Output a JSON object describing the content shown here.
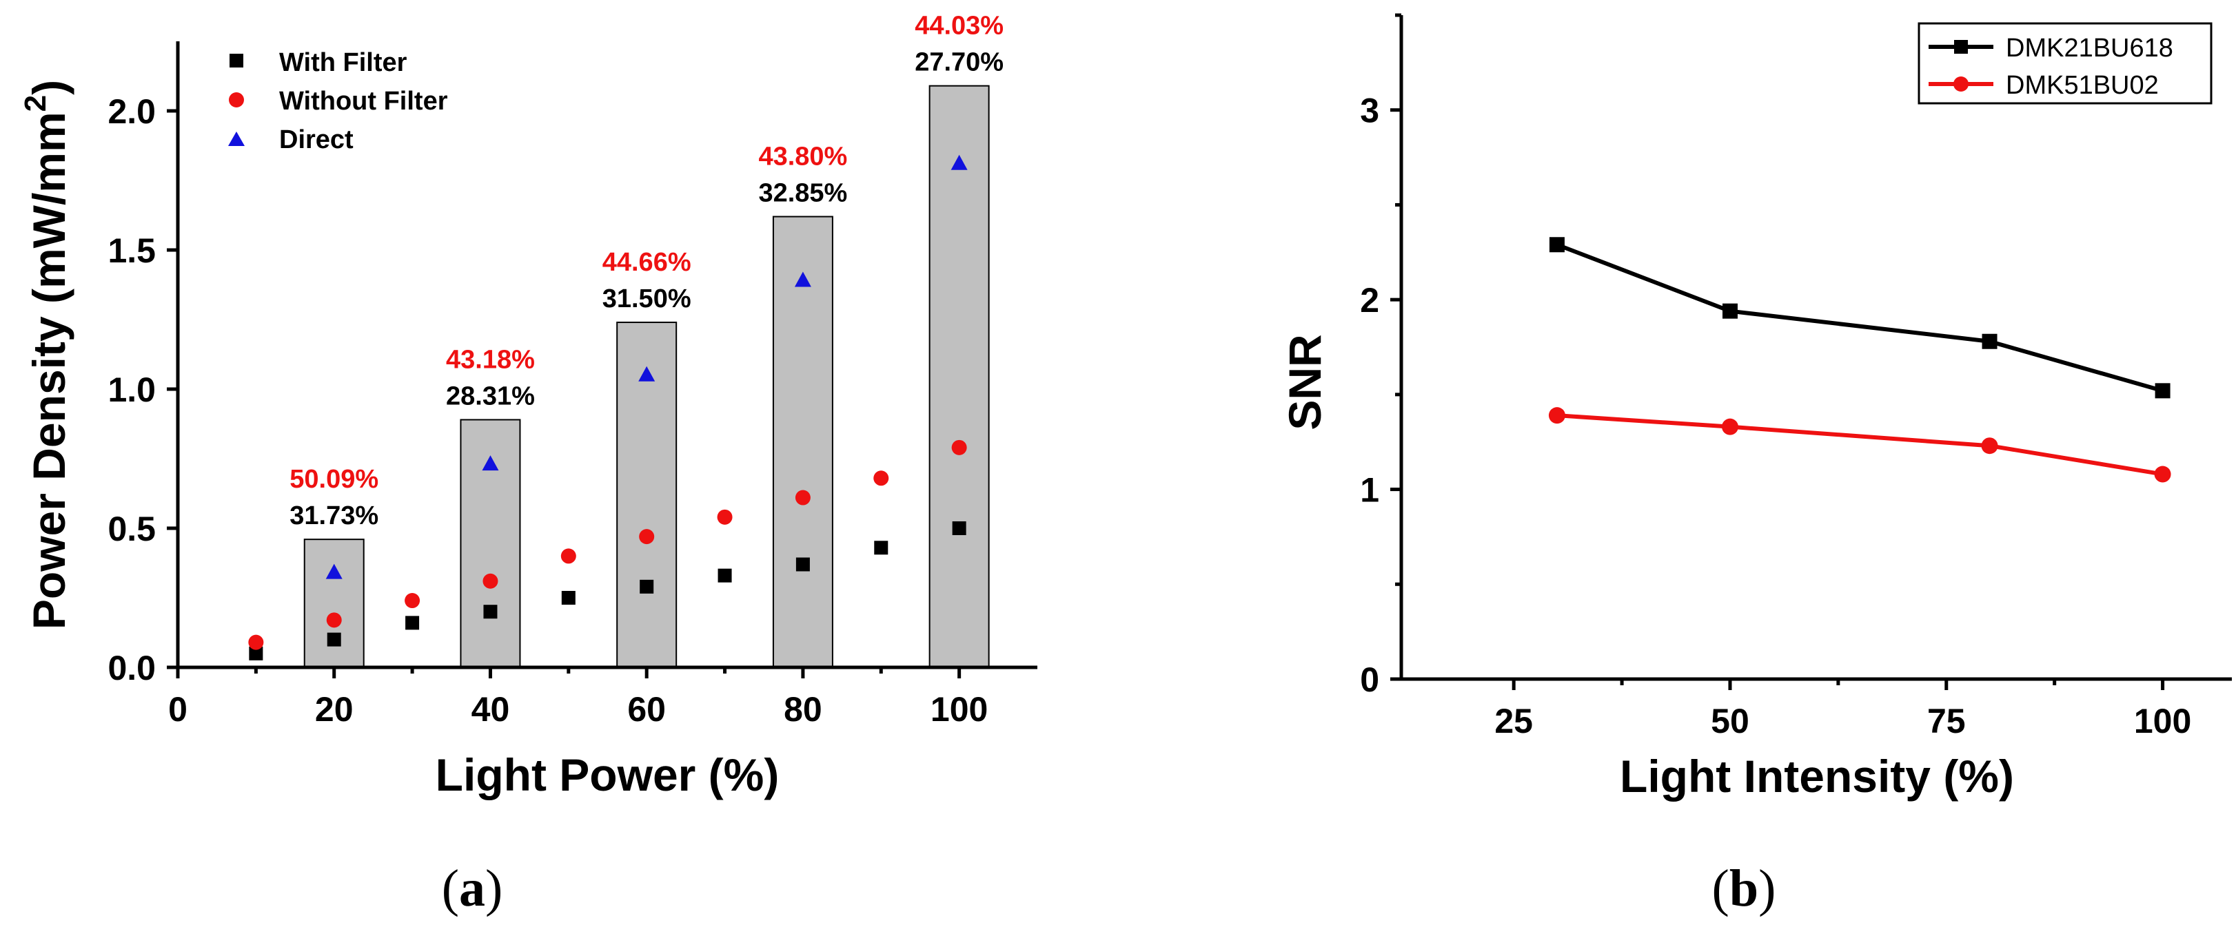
{
  "colors": {
    "with_filter": "#000000",
    "without_filter": "#ee1111",
    "direct": "#1111dd",
    "bar_fill": "#c0c0c0",
    "line_dmk21": "#000000",
    "line_dmk51": "#ee1111",
    "pct_red": "#ee1111"
  },
  "chart_data": [
    {
      "panel": "(a)",
      "panel_letter": "a",
      "type": "scatter",
      "xlabel": "Light Power (%)",
      "ylabel_main": "Power Density (mW/mm",
      "ylabel_sup": "2",
      "ylabel_close": ")",
      "xlim": [
        0,
        110
      ],
      "ylim": [
        0,
        2.25
      ],
      "xticks": [
        0,
        20,
        40,
        60,
        80,
        100
      ],
      "xtick_labels": [
        "0",
        "20",
        "40",
        "60",
        "80",
        "100"
      ],
      "yticks": [
        0.0,
        0.5,
        1.0,
        1.5,
        2.0
      ],
      "ytick_labels": [
        "0.0",
        "0.5",
        "1.0",
        "1.5",
        "2.0"
      ],
      "legend": [
        "With Filter",
        "Without Filter",
        "Direct"
      ],
      "series": [
        {
          "name": "With Filter",
          "marker": "square",
          "x": [
            10,
            20,
            30,
            40,
            50,
            60,
            70,
            80,
            90,
            100
          ],
          "y": [
            0.05,
            0.1,
            0.16,
            0.2,
            0.25,
            0.29,
            0.33,
            0.37,
            0.43,
            0.5
          ]
        },
        {
          "name": "Without Filter",
          "marker": "circle",
          "x": [
            10,
            20,
            30,
            40,
            50,
            60,
            70,
            80,
            90,
            100
          ],
          "y": [
            0.09,
            0.17,
            0.24,
            0.31,
            0.4,
            0.47,
            0.54,
            0.61,
            0.68,
            0.79
          ]
        },
        {
          "name": "Direct",
          "marker": "triangle",
          "x": [
            20,
            40,
            60,
            80,
            100
          ],
          "y": [
            0.34,
            0.73,
            1.05,
            1.39,
            1.81
          ]
        }
      ],
      "bars": [
        {
          "x": 20,
          "height": 0.46,
          "red_label": "50.09%",
          "black_label": "31.73%"
        },
        {
          "x": 40,
          "height": 0.89,
          "red_label": "43.18%",
          "black_label": "28.31%"
        },
        {
          "x": 60,
          "height": 1.24,
          "red_label": "44.66%",
          "black_label": "31.50%"
        },
        {
          "x": 80,
          "height": 1.62,
          "red_label": "43.80%",
          "black_label": "32.85%"
        },
        {
          "x": 100,
          "height": 2.09,
          "red_label": "44.03%",
          "black_label": "27.70%"
        }
      ]
    },
    {
      "panel": "(b)",
      "panel_letter": "b",
      "type": "line",
      "xlabel": "Light Intensity (%)",
      "ylabel": "SNR",
      "xlim": [
        12,
        108
      ],
      "ylim": [
        0,
        3.5
      ],
      "xticks": [
        25,
        50,
        75,
        100
      ],
      "xtick_labels": [
        "25",
        "50",
        "75",
        "100"
      ],
      "yticks": [
        0,
        1,
        2,
        3
      ],
      "ytick_labels": [
        "0",
        "1",
        "2",
        "3"
      ],
      "legend": [
        "DMK21BU618",
        "DMK51BU02"
      ],
      "series": [
        {
          "name": "DMK21BU618",
          "marker": "square",
          "x": [
            30,
            50,
            80,
            100
          ],
          "y": [
            2.29,
            1.94,
            1.78,
            1.52
          ]
        },
        {
          "name": "DMK51BU02",
          "marker": "circle",
          "x": [
            30,
            50,
            80,
            100
          ],
          "y": [
            1.39,
            1.33,
            1.23,
            1.08
          ]
        }
      ]
    }
  ]
}
